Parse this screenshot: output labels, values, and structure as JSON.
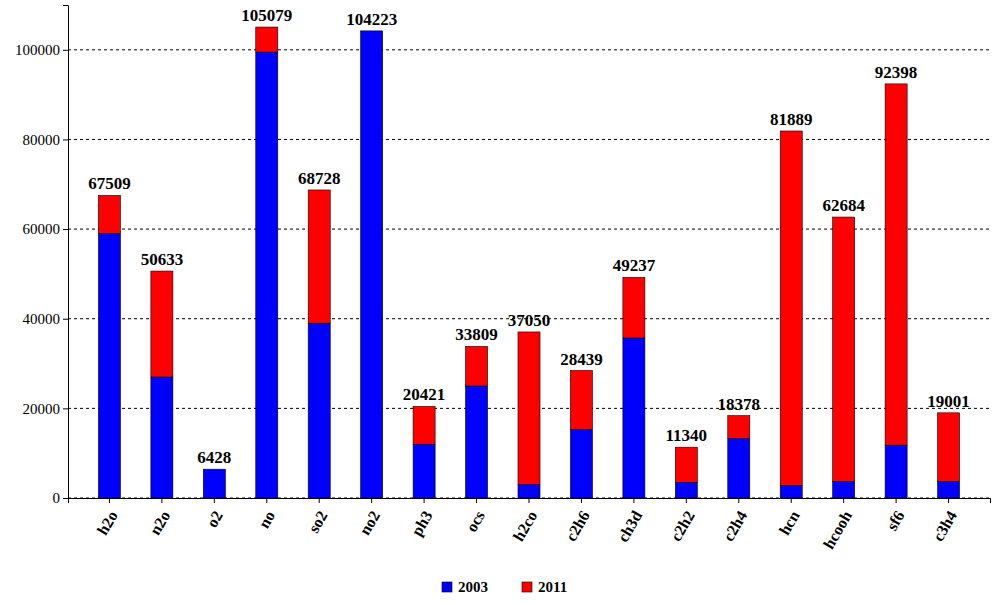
{
  "chart_data": {
    "type": "bar",
    "stacked": true,
    "grid": true,
    "legend": "bottom",
    "categories": [
      "h2o",
      "n2o",
      "o2",
      "no",
      "so2",
      "no2",
      "ph3",
      "ocs",
      "h2co",
      "c2h6",
      "ch3d",
      "c2h2",
      "c2h4",
      "hcn",
      "hcooh",
      "sf6",
      "c3h4"
    ],
    "series": [
      {
        "name": "2003",
        "color": "#0000ff",
        "values": [
          59000,
          27000,
          6428,
          99500,
          39000,
          104223,
          12000,
          25000,
          3000,
          15300,
          35700,
          3500,
          13300,
          2800,
          3700,
          11800,
          3700
        ]
      },
      {
        "name": "2011",
        "color": "#ff0000",
        "values": [
          8509,
          23633,
          0,
          5579,
          29728,
          0,
          8421,
          8809,
          34050,
          13139,
          13537,
          7840,
          5078,
          79089,
          58984,
          80598,
          15301
        ]
      }
    ],
    "totals": [
      67509,
      50633,
      6428,
      105079,
      68728,
      104223,
      20421,
      33809,
      37050,
      28439,
      49237,
      11340,
      18378,
      81889,
      62684,
      92398,
      19001
    ],
    "ylim": [
      0,
      110000
    ],
    "yticks": [
      0,
      20000,
      40000,
      60000,
      80000,
      100000
    ]
  }
}
